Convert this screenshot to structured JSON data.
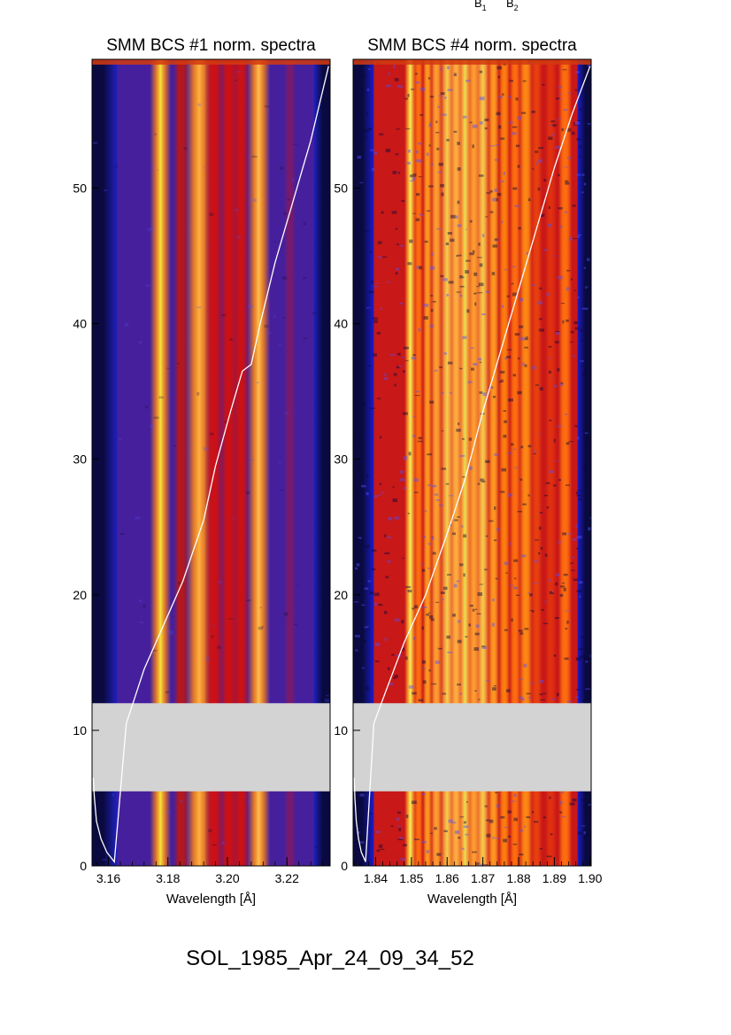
{
  "figure": {
    "caption": "SOL_1985_Apr_24_09_34_52",
    "header_labels": [
      {
        "letter": "B",
        "sub": "1"
      },
      {
        "letter": "B",
        "sub": "2"
      }
    ],
    "colors": {
      "background_blue": "#1a1ab8",
      "base_purple": "#46209c",
      "line_red": "#d01010",
      "line_orange": "#ff8a14",
      "line_yellow": "#f4e43c",
      "gap_gray": "#d3d3d3",
      "trace": "#ffffff"
    }
  },
  "chart_data": [
    {
      "type": "heatmap",
      "title": "SMM BCS #1 norm. spectra",
      "xlabel": "Wavelength [Å]",
      "ylabel": "",
      "xlim": [
        3.1545,
        3.2345
      ],
      "ylim": [
        0,
        59.5
      ],
      "x_ticks": [
        {
          "value": 3.16,
          "label": "3.16"
        },
        {
          "value": 3.18,
          "label": "3.18"
        },
        {
          "value": 3.2,
          "label": "3.20"
        },
        {
          "value": 3.22,
          "label": "3.22"
        }
      ],
      "y_ticks": [
        {
          "value": 0,
          "label": "0"
        },
        {
          "value": 10,
          "label": "10"
        },
        {
          "value": 20,
          "label": "20"
        },
        {
          "value": 30,
          "label": "30"
        },
        {
          "value": 40,
          "label": "40"
        },
        {
          "value": 50,
          "label": "50"
        }
      ],
      "data_gap": [
        5.5,
        12.0
      ],
      "background": {
        "dark_edges": [
          [
            3.1545,
            3.163
          ],
          [
            3.229,
            3.2345
          ]
        ],
        "dark_color": "#0a0a40",
        "mid_color": "#2020c0",
        "base_range": [
          3.163,
          3.229
        ],
        "base_color": "#46209c"
      },
      "spectral_lines": [
        {
          "wavelength": 3.1775,
          "width": 0.0022,
          "color": "#ff8a14",
          "core_color": "#f4e43c"
        },
        {
          "wavelength": 3.1845,
          "width": 0.0016,
          "color": "#b81818"
        },
        {
          "wavelength": 3.1905,
          "width": 0.0028,
          "color": "#ff8a14",
          "core_color": "#ffb040"
        },
        {
          "wavelength": 3.1955,
          "width": 0.002,
          "color": "#d01010"
        },
        {
          "wavelength": 3.2005,
          "width": 0.002,
          "color": "#d01010"
        },
        {
          "wavelength": 3.2045,
          "width": 0.0018,
          "color": "#d01010"
        },
        {
          "wavelength": 3.2105,
          "width": 0.0024,
          "color": "#ff8a14",
          "core_color": "#ffc050"
        },
        {
          "wavelength": 3.221,
          "width": 0.0012,
          "color": "#7a1a6a"
        }
      ],
      "trace": {
        "x": [
          3.1549,
          3.1553,
          3.156,
          3.1575,
          3.1595,
          3.162,
          3.166,
          3.172,
          3.178,
          3.185,
          3.192,
          3.196,
          3.201,
          3.205,
          3.208,
          3.211,
          3.216,
          3.222,
          3.228,
          3.234
        ],
        "y": [
          6.5,
          5.0,
          3.3,
          2.0,
          1.0,
          0.3,
          10.5,
          14.5,
          17.5,
          21.0,
          25.5,
          29.5,
          33.5,
          36.5,
          37.0,
          40.0,
          44.5,
          49.0,
          53.5,
          59.0
        ]
      }
    },
    {
      "type": "heatmap",
      "title": "SMM BCS #4 norm. spectra",
      "xlabel": "Wavelength [Å]",
      "ylabel": "",
      "xlim": [
        1.8337,
        1.9003
      ],
      "ylim": [
        0,
        59.5
      ],
      "x_ticks": [
        {
          "value": 1.84,
          "label": "1.84"
        },
        {
          "value": 1.85,
          "label": "1.85"
        },
        {
          "value": 1.86,
          "label": "1.86"
        },
        {
          "value": 1.87,
          "label": "1.87"
        },
        {
          "value": 1.88,
          "label": "1.88"
        },
        {
          "value": 1.89,
          "label": "1.89"
        },
        {
          "value": 1.9,
          "label": "1.90"
        }
      ],
      "y_ticks": [
        {
          "value": 0,
          "label": "0"
        },
        {
          "value": 10,
          "label": "10"
        },
        {
          "value": 20,
          "label": "20"
        },
        {
          "value": 30,
          "label": "30"
        },
        {
          "value": 40,
          "label": "40"
        },
        {
          "value": 50,
          "label": "50"
        }
      ],
      "data_gap": [
        5.5,
        12.0
      ],
      "background": {
        "dark_edges": [
          [
            1.8337,
            1.8395
          ],
          [
            1.8965,
            1.9003
          ]
        ],
        "dark_color": "#0a0a40",
        "mid_color": "#1c1cc8",
        "base_range": [
          1.8395,
          1.8965
        ],
        "base_color": "#c81818"
      },
      "spectral_lines": [
        {
          "wavelength": 1.8497,
          "width": 0.001,
          "color": "#ffb030",
          "core_color": "#f4f060"
        },
        {
          "wavelength": 1.852,
          "width": 0.0008,
          "color": "#ff7010"
        },
        {
          "wavelength": 1.8545,
          "width": 0.0008,
          "color": "#ff9a20"
        },
        {
          "wavelength": 1.857,
          "width": 0.001,
          "color": "#ffa030"
        },
        {
          "wavelength": 1.86,
          "width": 0.0012,
          "color": "#ffb040",
          "core_color": "#f0d050"
        },
        {
          "wavelength": 1.8625,
          "width": 0.001,
          "color": "#ffb040"
        },
        {
          "wavelength": 1.865,
          "width": 0.0012,
          "color": "#ffb040",
          "core_color": "#e8e050"
        },
        {
          "wavelength": 1.8675,
          "width": 0.001,
          "color": "#ffa030"
        },
        {
          "wavelength": 1.87,
          "width": 0.0012,
          "color": "#ffb040",
          "core_color": "#f0d050"
        },
        {
          "wavelength": 1.873,
          "width": 0.001,
          "color": "#ff9a20"
        },
        {
          "wavelength": 1.876,
          "width": 0.001,
          "color": "#ff8010"
        },
        {
          "wavelength": 1.879,
          "width": 0.001,
          "color": "#ff7010"
        },
        {
          "wavelength": 1.882,
          "width": 0.0012,
          "color": "#ff8a14"
        },
        {
          "wavelength": 1.885,
          "width": 0.001,
          "color": "#e84010"
        },
        {
          "wavelength": 1.889,
          "width": 0.001,
          "color": "#e03010"
        },
        {
          "wavelength": 1.893,
          "width": 0.0012,
          "color": "#ff7010"
        }
      ],
      "trace": {
        "x": [
          1.834,
          1.8342,
          1.8346,
          1.8352,
          1.836,
          1.8372,
          1.8395,
          1.843,
          1.848,
          1.854,
          1.86,
          1.865,
          1.87,
          1.875,
          1.88,
          1.885,
          1.89,
          1.895,
          1.9
        ],
        "y": [
          6.5,
          5.0,
          3.3,
          2.0,
          1.0,
          0.3,
          10.5,
          13.0,
          16.5,
          20.0,
          24.5,
          28.5,
          33.5,
          38.0,
          42.5,
          47.0,
          51.5,
          55.5,
          59.0
        ]
      }
    }
  ]
}
